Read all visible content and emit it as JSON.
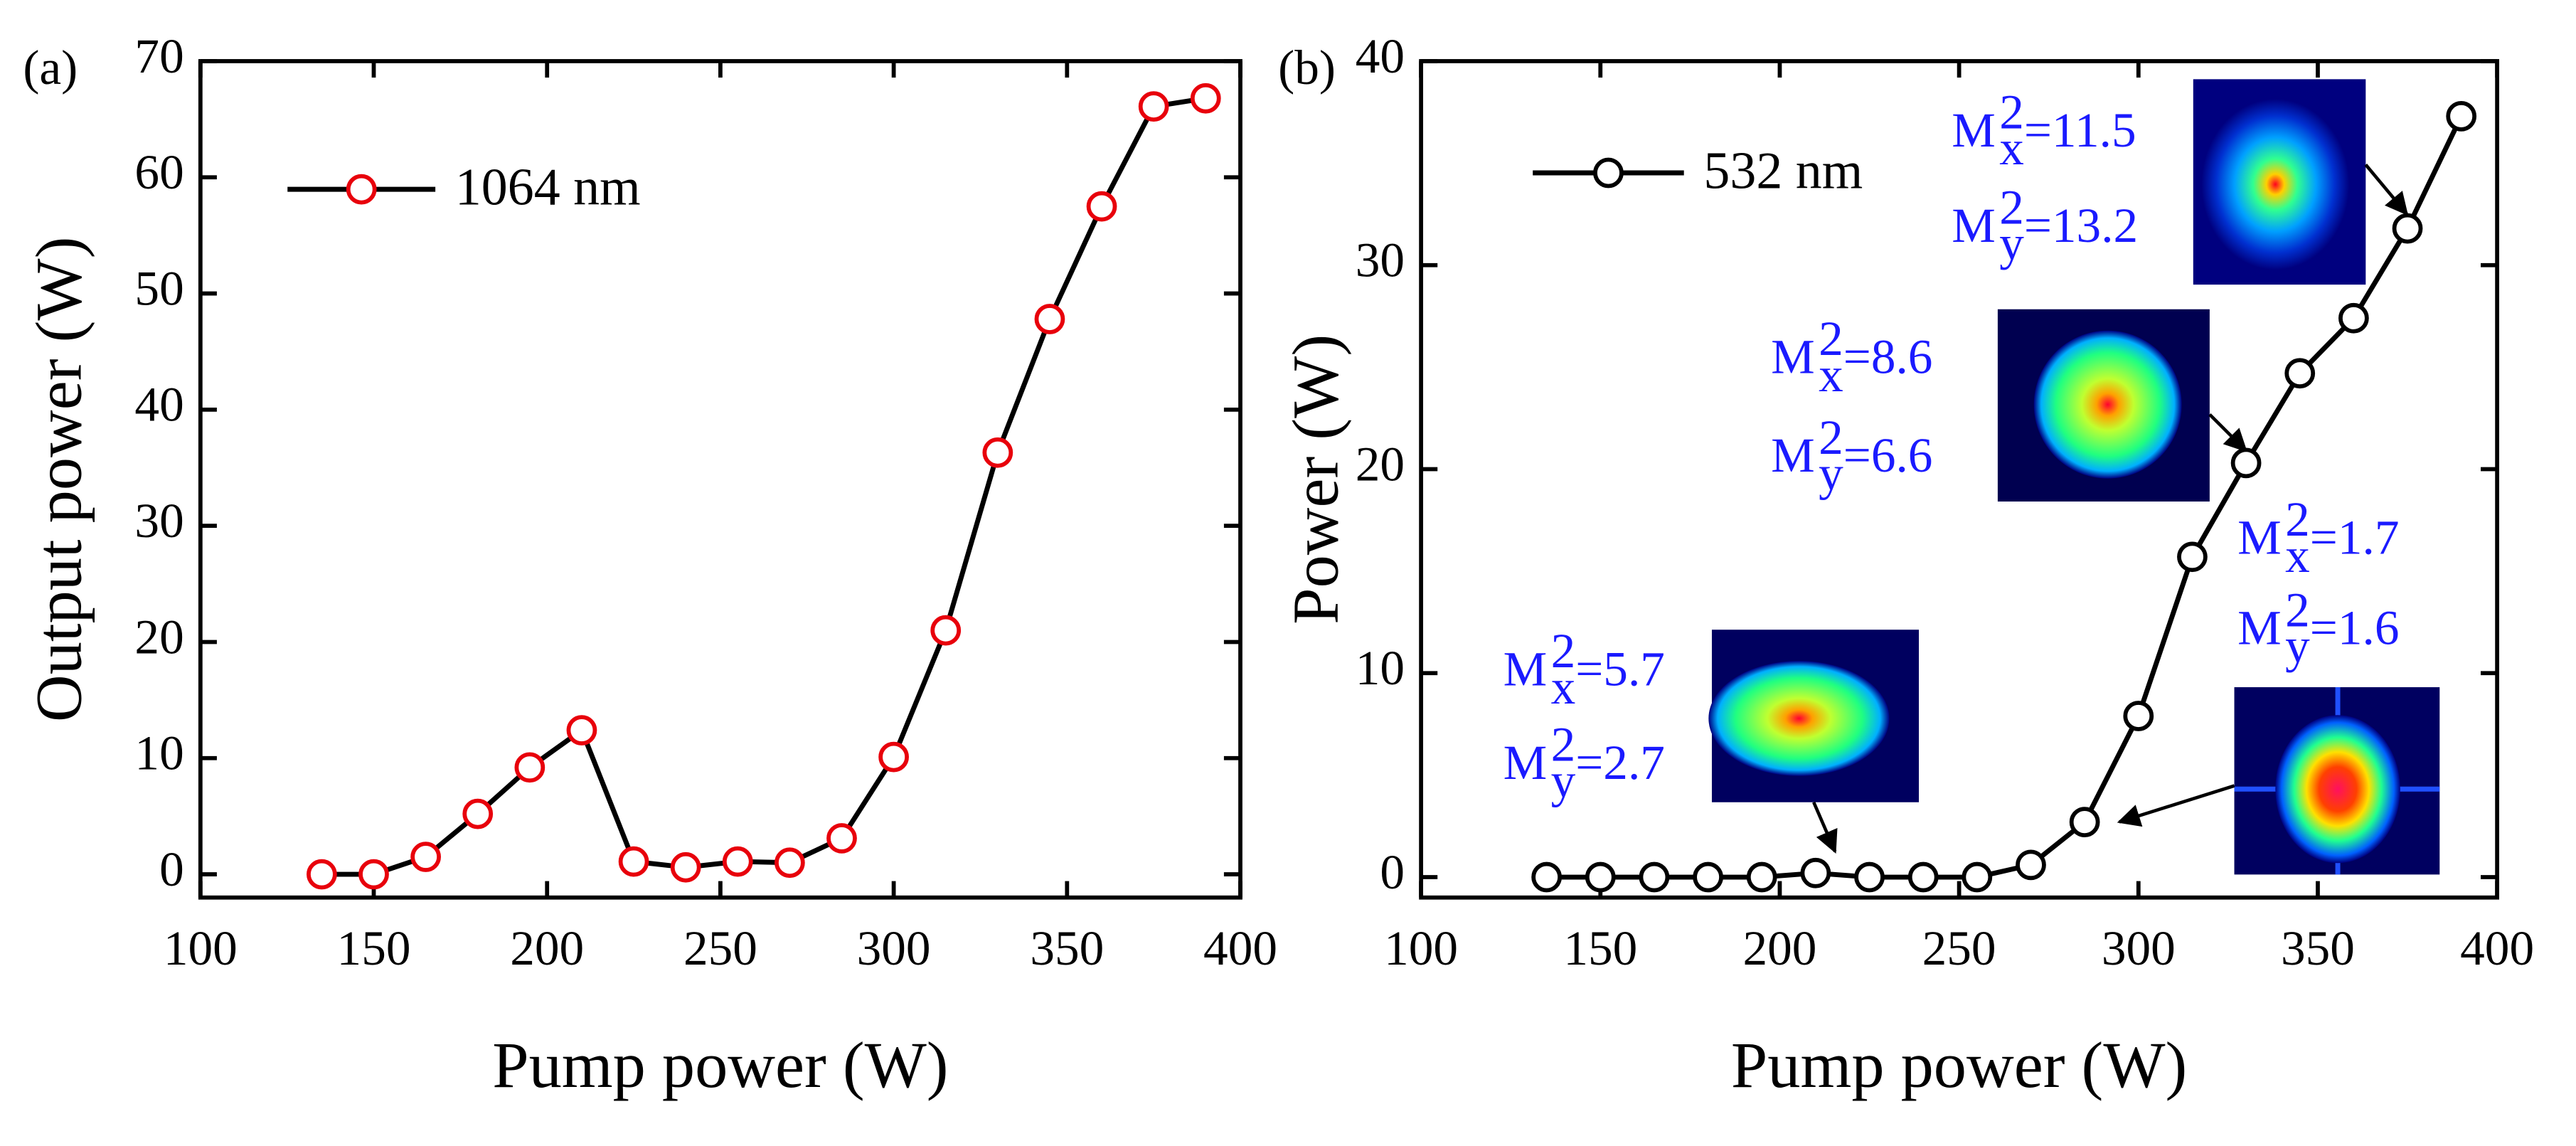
{
  "chart_data": [
    {
      "type": "line",
      "panel_label": "(a)",
      "x_label": "Pump power (W)",
      "y_label": "Output power (W)",
      "x": [
        135,
        150,
        165,
        180,
        195,
        210,
        225,
        240,
        255,
        270,
        285,
        300,
        315,
        330,
        345,
        360,
        375,
        390
      ],
      "series": [
        {
          "name": "1064 nm",
          "color": "#000000",
          "marker_color": "#e8000b",
          "values": [
            0,
            0,
            1.5,
            5.2,
            9.2,
            12.4,
            1.1,
            0.6,
            1.1,
            1.0,
            3.1,
            10.1,
            21.0,
            36.3,
            47.8,
            57.5,
            66.1,
            66.8
          ]
        }
      ],
      "xlim": [
        100,
        400
      ],
      "xticks": [
        100,
        150,
        200,
        250,
        300,
        350,
        400
      ],
      "ylim": [
        -2,
        70
      ],
      "yticks": [
        0,
        10,
        20,
        30,
        40,
        50,
        60,
        70
      ],
      "legend": "upper left"
    },
    {
      "type": "line",
      "panel_label": "(b)",
      "x_label": "Pump power (W)",
      "y_label": "Power (W)",
      "x": [
        135,
        150,
        165,
        180,
        195,
        210,
        225,
        240,
        255,
        270,
        285,
        300,
        315,
        330,
        345,
        360,
        375,
        390
      ],
      "series": [
        {
          "name": "532 nm",
          "color": "#000000",
          "marker_color": "#000000",
          "values": [
            0,
            0,
            0,
            0,
            0,
            0.2,
            0,
            0,
            0,
            0.6,
            2.7,
            7.9,
            15.7,
            20.3,
            24.7,
            27.4,
            31.8,
            37.3
          ]
        }
      ],
      "xlim": [
        100,
        400
      ],
      "xticks": [
        100,
        150,
        200,
        250,
        300,
        350,
        400
      ],
      "ylim": [
        -1,
        40
      ],
      "yticks": [
        0,
        10,
        20,
        30,
        40
      ],
      "legend": "upper left",
      "annotations": [
        {
          "symbol": "M",
          "sup": "2",
          "sub": "x",
          "text": "=11.5"
        },
        {
          "symbol": "M",
          "sup": "2",
          "sub": "y",
          "text": "=13.2"
        },
        {
          "symbol": "M",
          "sup": "2",
          "sub": "x",
          "text": "=8.6"
        },
        {
          "symbol": "M",
          "sup": "2",
          "sub": "y",
          "text": "=6.6"
        },
        {
          "symbol": "M",
          "sup": "2",
          "sub": "x",
          "text": "=1.7"
        },
        {
          "symbol": "M",
          "sup": "2",
          "sub": "y",
          "text": "=1.6"
        },
        {
          "symbol": "M",
          "sup": "2",
          "sub": "x",
          "text": "=5.7"
        },
        {
          "symbol": "M",
          "sup": "2",
          "sub": "y",
          "text": "=2.7"
        }
      ]
    }
  ]
}
